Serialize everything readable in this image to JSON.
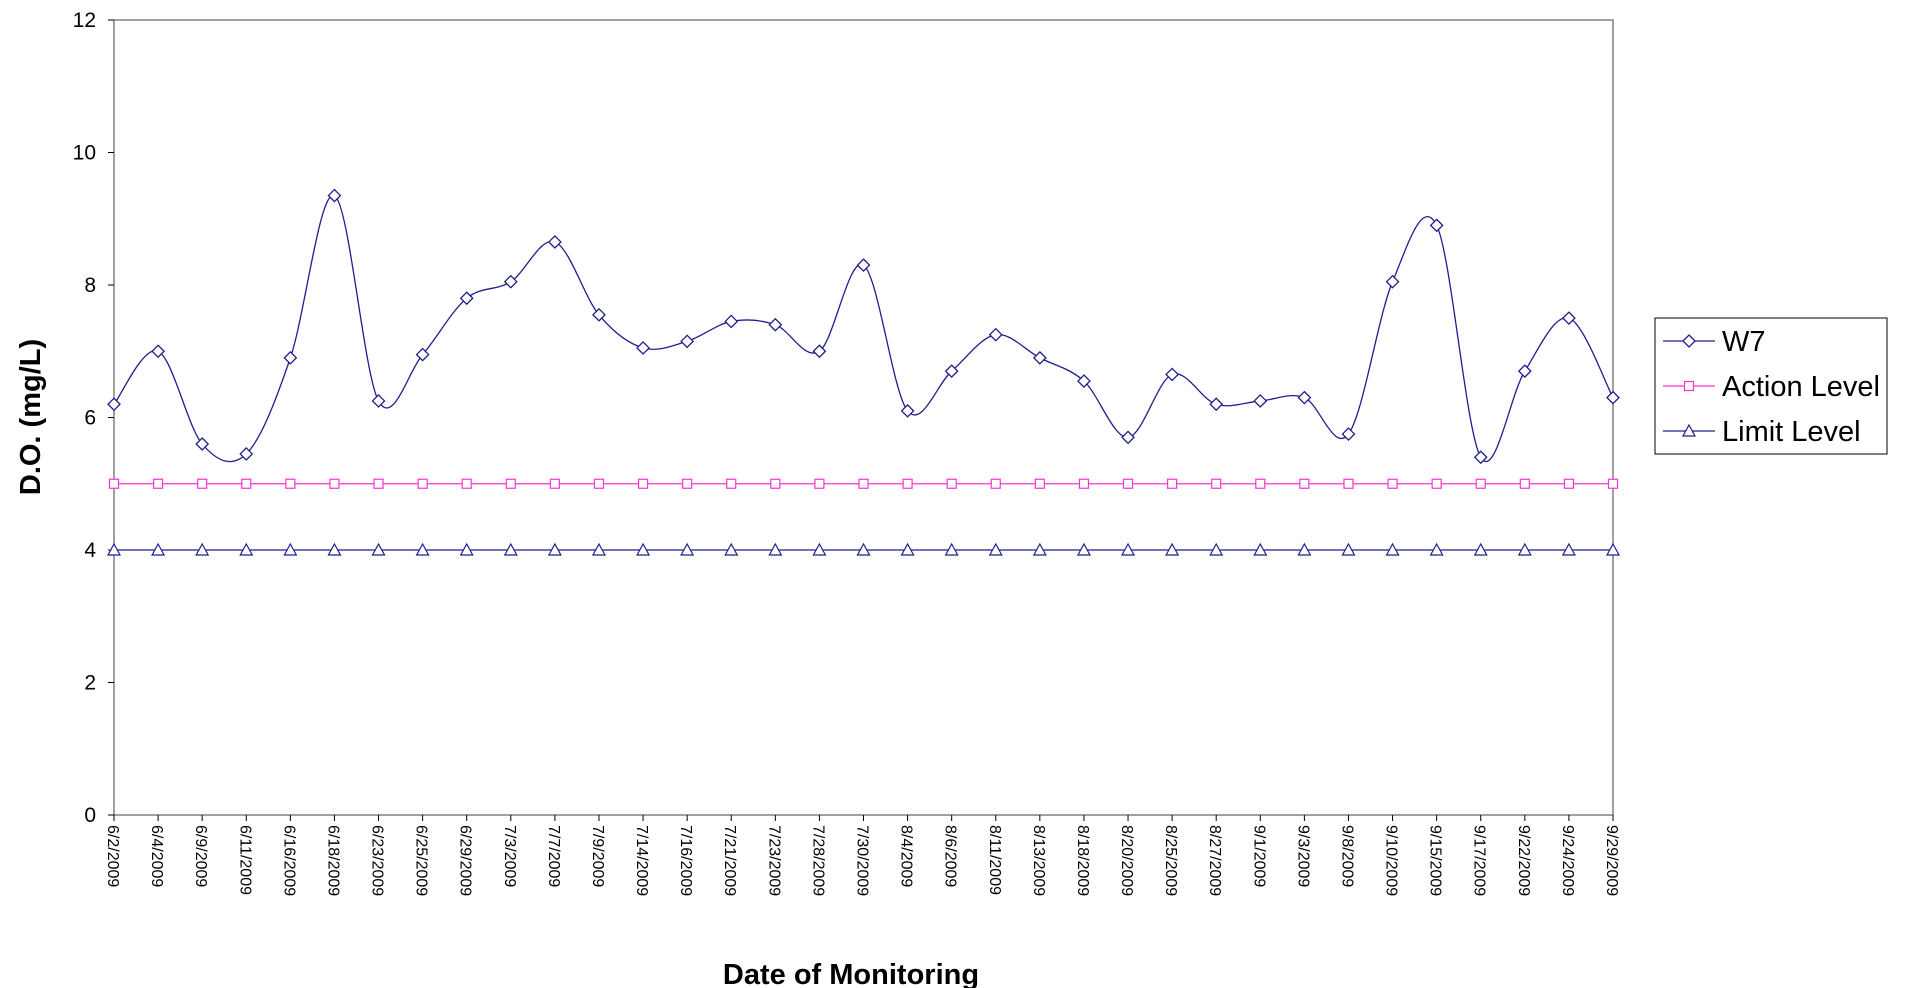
{
  "chart_data": {
    "type": "line",
    "title": "",
    "xlabel": "Date of Monitoring",
    "ylabel": "D.O. (mg/L)",
    "ylim": [
      0,
      12
    ],
    "yticks": [
      "0",
      "2",
      "4",
      "6",
      "8",
      "10",
      "12"
    ],
    "categories": [
      "6/2/2009",
      "6/4/2009",
      "6/9/2009",
      "6/11/2009",
      "6/16/2009",
      "6/18/2009",
      "6/23/2009",
      "6/25/2009",
      "6/29/2009",
      "7/3/2009",
      "7/7/2009",
      "7/9/2009",
      "7/14/2009",
      "7/16/2009",
      "7/21/2009",
      "7/23/2009",
      "7/28/2009",
      "7/30/2009",
      "8/4/2009",
      "8/6/2009",
      "8/11/2009",
      "8/13/2009",
      "8/18/2009",
      "8/20/2009",
      "8/25/2009",
      "8/27/2009",
      "9/1/2009",
      "9/3/2009",
      "9/8/2009",
      "9/10/2009",
      "9/15/2009",
      "9/17/2009",
      "9/22/2009",
      "9/24/2009",
      "9/29/2009"
    ],
    "series": [
      {
        "name": "W7",
        "color": "#1f1f8c",
        "marker": "diamond",
        "smooth": true,
        "values": [
          6.2,
          7.0,
          5.6,
          5.45,
          6.9,
          9.35,
          6.25,
          6.95,
          7.8,
          8.05,
          8.65,
          7.55,
          7.05,
          7.15,
          7.45,
          7.4,
          7.0,
          8.3,
          6.1,
          6.7,
          7.25,
          6.9,
          6.55,
          5.7,
          6.65,
          6.2,
          6.25,
          6.3,
          5.75,
          8.05,
          8.9,
          5.4,
          6.7,
          7.5,
          6.3
        ]
      },
      {
        "name": "Action Level",
        "color": "#ff33cc",
        "marker": "square",
        "smooth": false,
        "values": [
          5,
          5,
          5,
          5,
          5,
          5,
          5,
          5,
          5,
          5,
          5,
          5,
          5,
          5,
          5,
          5,
          5,
          5,
          5,
          5,
          5,
          5,
          5,
          5,
          5,
          5,
          5,
          5,
          5,
          5,
          5,
          5,
          5,
          5,
          5
        ]
      },
      {
        "name": "Limit Level",
        "color": "#1f1f8c",
        "marker": "triangle",
        "smooth": false,
        "values": [
          4,
          4,
          4,
          4,
          4,
          4,
          4,
          4,
          4,
          4,
          4,
          4,
          4,
          4,
          4,
          4,
          4,
          4,
          4,
          4,
          4,
          4,
          4,
          4,
          4,
          4,
          4,
          4,
          4,
          4,
          4,
          4,
          4,
          4,
          4
        ]
      }
    ],
    "legend": "right",
    "grid": false
  }
}
